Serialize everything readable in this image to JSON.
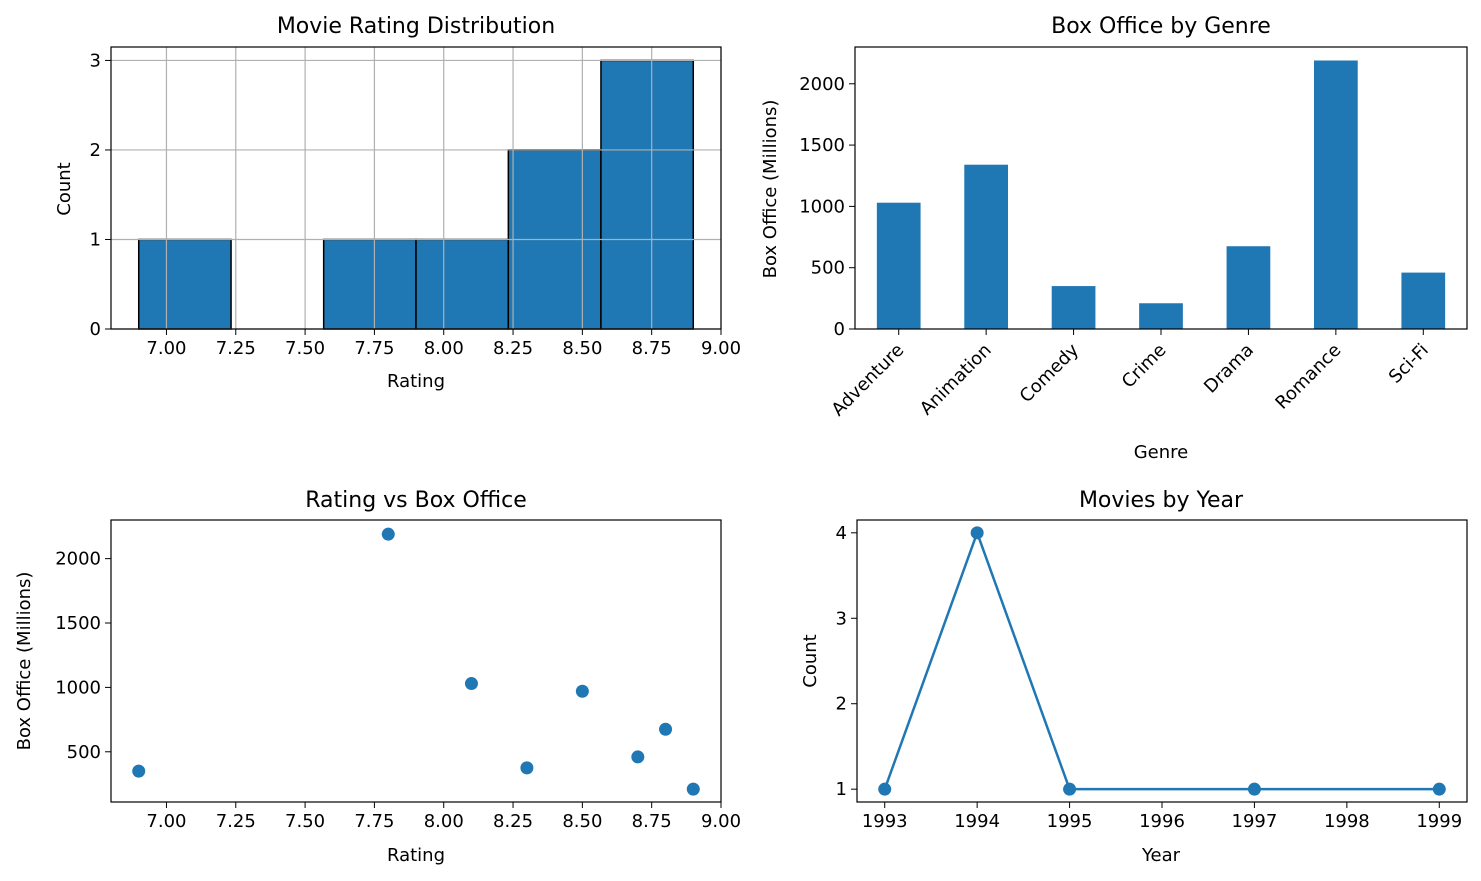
{
  "accent_color": "#1f77b4",
  "chart_data": [
    {
      "id": "rating-hist",
      "type": "bar",
      "subtype": "histogram",
      "title": "Movie Rating Distribution",
      "xlabel": "Rating",
      "ylabel": "Count",
      "xlim": [
        6.8,
        9.0
      ],
      "ylim": [
        0,
        3.15
      ],
      "xticks": [
        "7.00",
        "7.25",
        "7.50",
        "7.75",
        "8.00",
        "8.25",
        "8.50",
        "8.75",
        "9.00"
      ],
      "yticks": [
        "0",
        "1",
        "2",
        "3"
      ],
      "bins": [
        {
          "start": 6.9,
          "end": 7.233,
          "count": 1
        },
        {
          "start": 7.233,
          "end": 7.567,
          "count": 0
        },
        {
          "start": 7.567,
          "end": 7.9,
          "count": 1
        },
        {
          "start": 7.9,
          "end": 8.233,
          "count": 1
        },
        {
          "start": 8.233,
          "end": 8.567,
          "count": 2
        },
        {
          "start": 8.567,
          "end": 8.9,
          "count": 3
        }
      ],
      "grid": true,
      "color": "#1f77b4",
      "edgecolor": "#000000"
    },
    {
      "id": "box-office-genre",
      "type": "bar",
      "title": "Box Office by Genre",
      "xlabel": "Genre",
      "ylabel": "Box Office (Millions)",
      "ylim": [
        0,
        2300
      ],
      "yticks": [
        "0",
        "500",
        "1000",
        "1500",
        "2000"
      ],
      "categories": [
        "Adventure",
        "Animation",
        "Comedy",
        "Crime",
        "Drama",
        "Romance",
        "Sci-Fi"
      ],
      "values": [
        1030,
        1340,
        350,
        210,
        675,
        2190,
        460
      ],
      "grid": false,
      "color": "#1f77b4"
    },
    {
      "id": "rating-vs-box",
      "type": "scatter",
      "title": "Rating vs Box Office",
      "xlabel": "Rating",
      "ylabel": "Box Office (Millions)",
      "xlim": [
        6.8,
        9.0
      ],
      "ylim": [
        110,
        2300
      ],
      "xticks": [
        "7.00",
        "7.25",
        "7.50",
        "7.75",
        "8.00",
        "8.25",
        "8.50",
        "8.75",
        "9.00"
      ],
      "yticks": [
        "500",
        "1000",
        "1500",
        "2000"
      ],
      "points": [
        {
          "x": 6.9,
          "y": 350
        },
        {
          "x": 7.8,
          "y": 2190
        },
        {
          "x": 8.1,
          "y": 1030
        },
        {
          "x": 8.3,
          "y": 375
        },
        {
          "x": 8.5,
          "y": 970
        },
        {
          "x": 8.7,
          "y": 460
        },
        {
          "x": 8.8,
          "y": 675
        },
        {
          "x": 8.9,
          "y": 210
        }
      ],
      "grid": false,
      "color": "#1f77b4"
    },
    {
      "id": "movies-by-year",
      "type": "line",
      "title": "Movies by Year",
      "xlabel": "Year",
      "ylabel": "Count",
      "xlim": [
        1992.7,
        1999.3
      ],
      "ylim": [
        0.85,
        4.15
      ],
      "xticks": [
        "1993",
        "1994",
        "1995",
        "1996",
        "1997",
        "1998",
        "1999"
      ],
      "yticks": [
        "1",
        "2",
        "3",
        "4"
      ],
      "x": [
        1993,
        1994,
        1995,
        1997,
        1999
      ],
      "y": [
        1,
        4,
        1,
        1,
        1
      ],
      "markers": true,
      "grid": false,
      "color": "#1f77b4"
    }
  ]
}
